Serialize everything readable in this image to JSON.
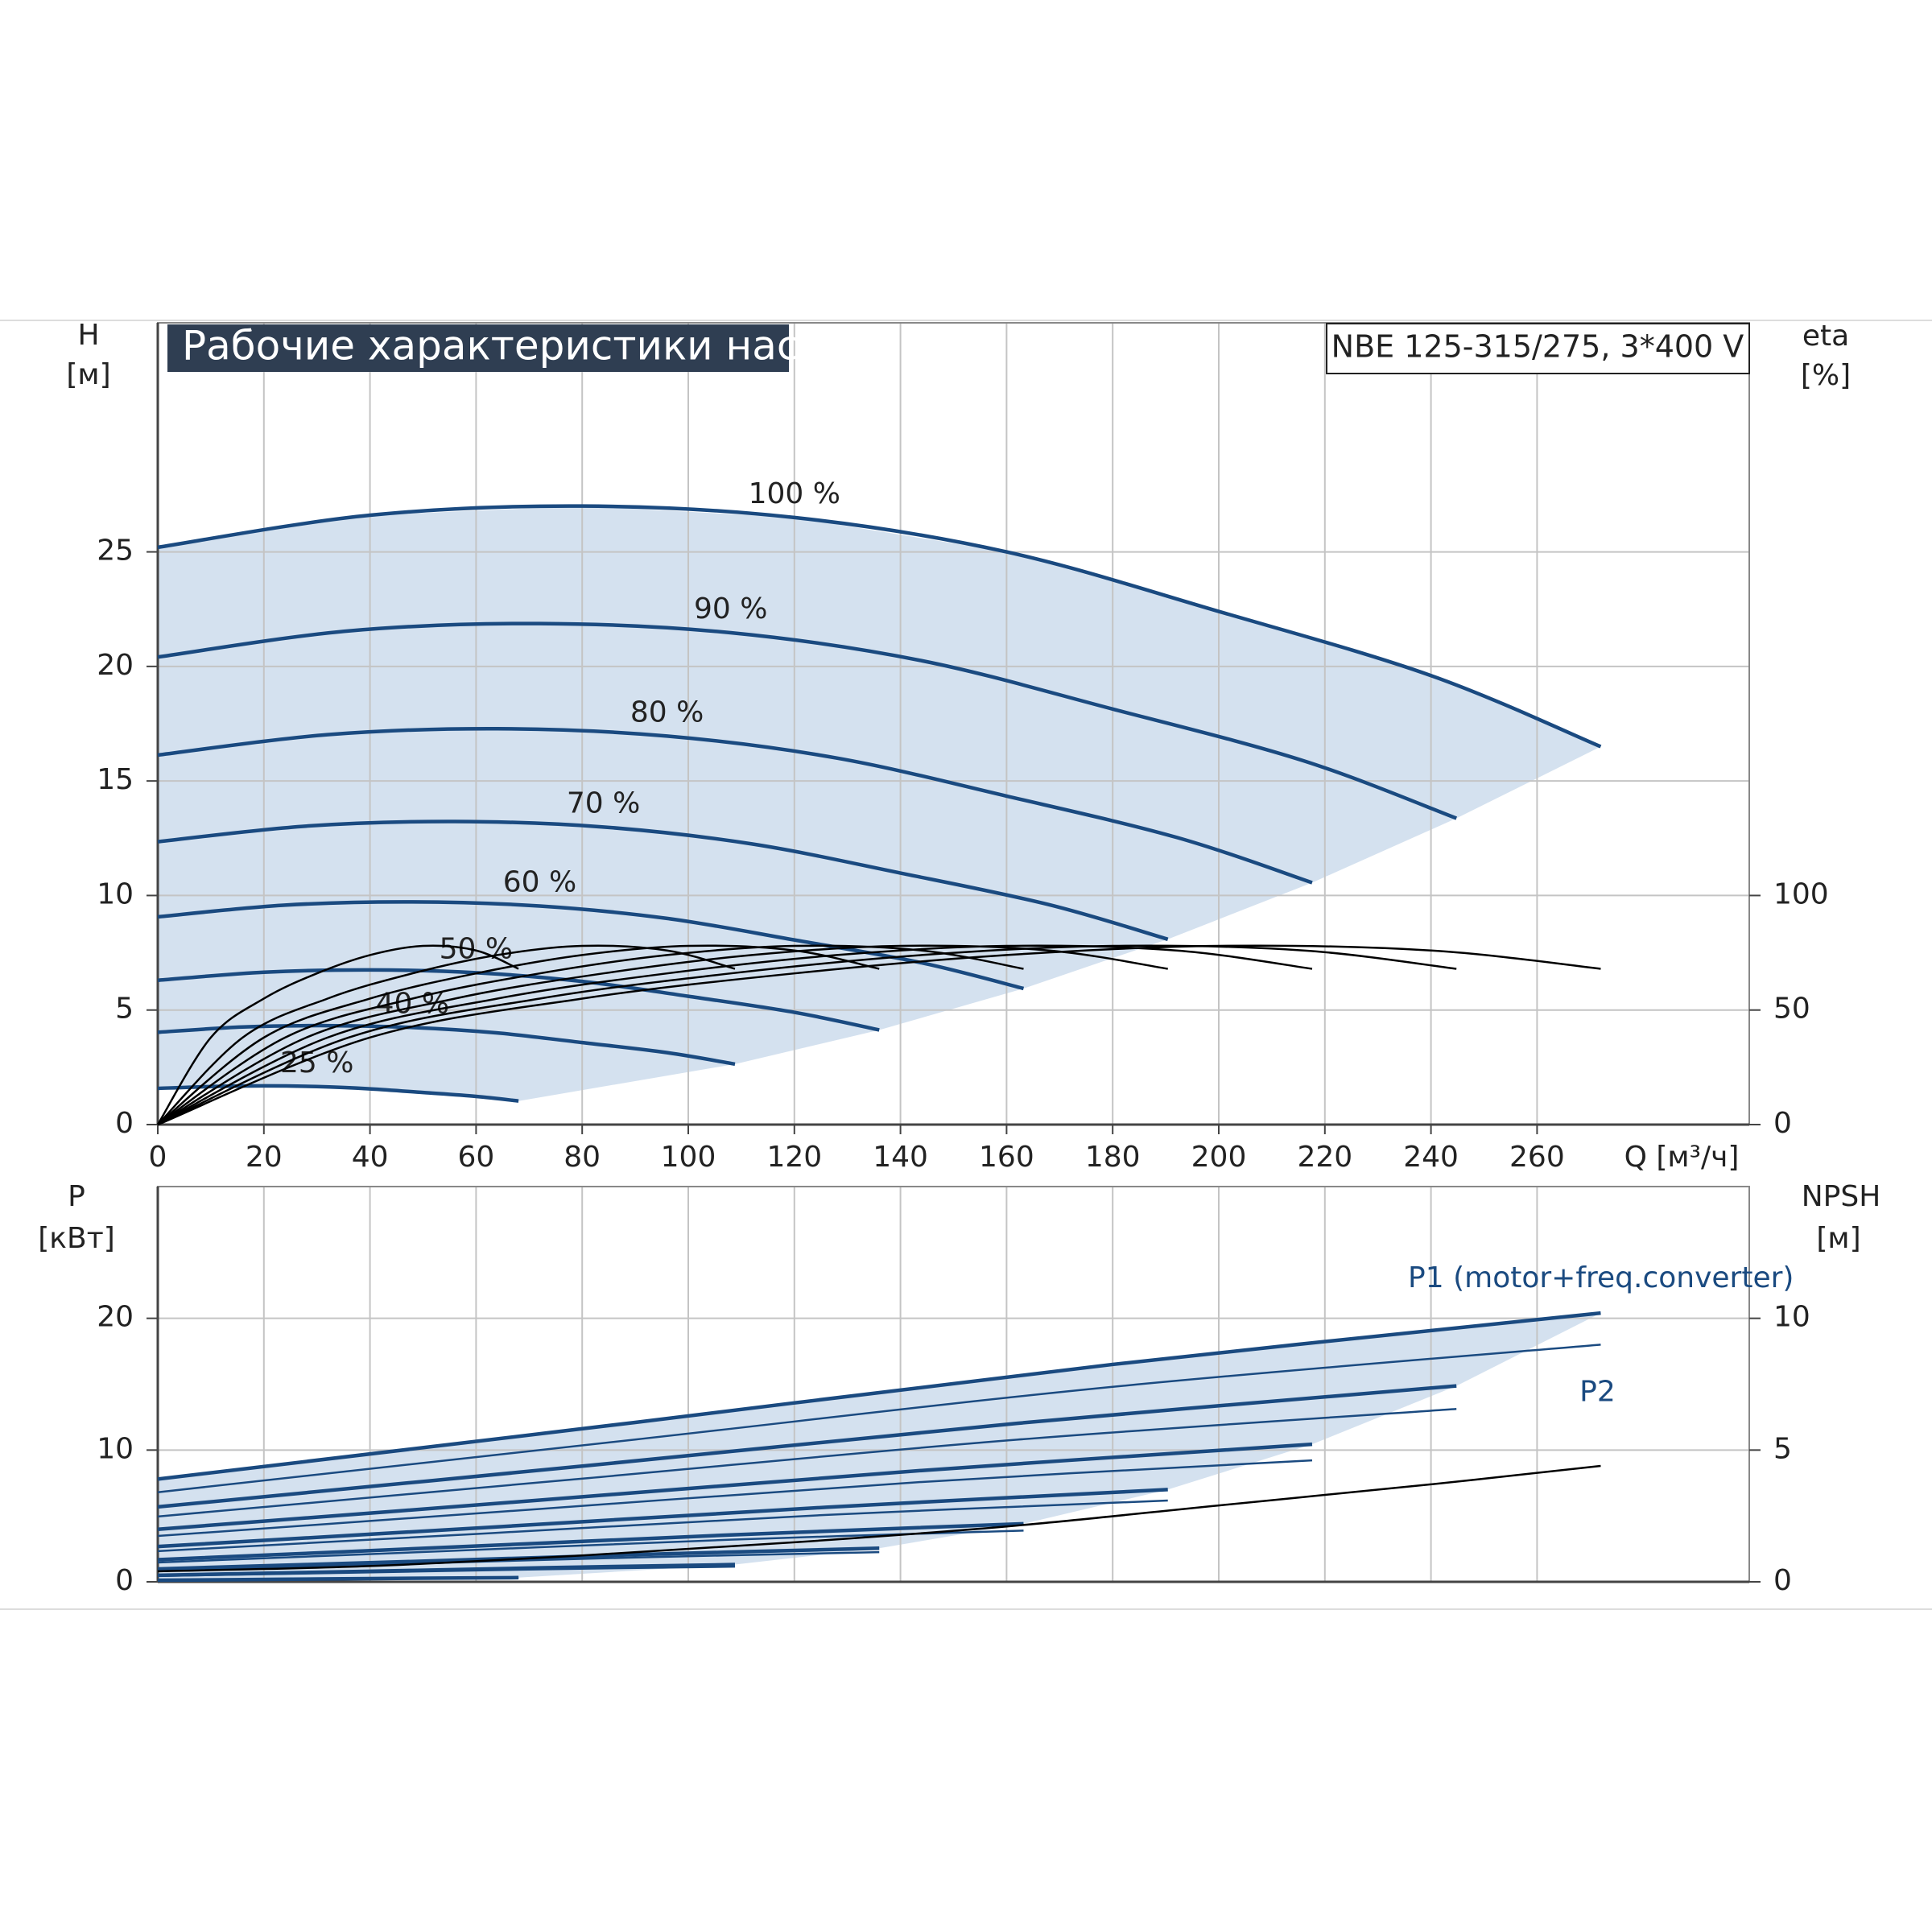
{
  "chart_data": [
    {
      "type": "line",
      "title": "Рабочие характеристики насоса",
      "annotation": "NBE 125-315/275, 3*400 V",
      "xlabel": "Q [м³/ч]",
      "ylabel": "H",
      "yunit": "[м]",
      "y2label": "eta",
      "y2unit": "[%]",
      "xlim": [
        0,
        300
      ],
      "xticks": [
        0,
        20,
        40,
        60,
        80,
        100,
        120,
        140,
        160,
        180,
        200,
        220,
        240,
        260
      ],
      "ylim": [
        0,
        35
      ],
      "yticks": [
        0,
        5,
        10,
        15,
        20,
        25
      ],
      "y2lim": [
        0,
        350
      ],
      "y2ticks": [
        0,
        50,
        100
      ],
      "grid": true,
      "fill": "#d4e1ef",
      "series": [
        {
          "name": "100 %",
          "color": "#1a4a80",
          "x": [
            0,
            40,
            80,
            120,
            160,
            200,
            240,
            272
          ],
          "values": [
            25.2,
            26.6,
            27.0,
            26.5,
            25.0,
            22.4,
            19.6,
            16.5
          ]
        },
        {
          "name": "90 %",
          "color": "#1a4a80",
          "x": [
            0,
            36,
            72,
            108,
            144,
            180,
            216,
            244.8
          ],
          "values": [
            20.41,
            21.55,
            21.87,
            21.47,
            20.25,
            18.14,
            15.88,
            13.37
          ]
        },
        {
          "name": "80 %",
          "color": "#1a4a80",
          "x": [
            0,
            32,
            64,
            96,
            128,
            160,
            192,
            217.6
          ],
          "values": [
            16.13,
            17.02,
            17.28,
            16.96,
            16.0,
            14.34,
            12.54,
            10.56
          ]
        },
        {
          "name": "70 %",
          "color": "#1a4a80",
          "x": [
            0,
            28,
            56,
            84,
            112,
            140,
            168,
            190.4
          ],
          "values": [
            12.35,
            13.03,
            13.23,
            12.99,
            12.25,
            10.98,
            9.6,
            8.09
          ]
        },
        {
          "name": "60 %",
          "color": "#1a4a80",
          "x": [
            0,
            24,
            48,
            72,
            96,
            120,
            144,
            163.2
          ],
          "values": [
            9.07,
            9.58,
            9.72,
            9.54,
            9.0,
            8.06,
            7.06,
            5.94
          ]
        },
        {
          "name": "50 %",
          "color": "#1a4a80",
          "x": [
            0,
            20,
            40,
            60,
            80,
            100,
            120,
            136
          ],
          "values": [
            6.3,
            6.65,
            6.75,
            6.63,
            6.25,
            5.6,
            4.9,
            4.13
          ]
        },
        {
          "name": "40 %",
          "color": "#1a4a80",
          "x": [
            0,
            16,
            32,
            48,
            64,
            80,
            96,
            108.8
          ],
          "values": [
            4.03,
            4.26,
            4.32,
            4.24,
            4.0,
            3.58,
            3.14,
            2.64
          ]
        },
        {
          "name": "25 %",
          "color": "#1a4a80",
          "x": [
            0,
            10,
            20,
            30,
            40,
            50,
            60,
            68
          ],
          "values": [
            1.58,
            1.66,
            1.69,
            1.66,
            1.56,
            1.4,
            1.23,
            1.03
          ]
        },
        {
          "color": "#000000",
          "axis": "y2",
          "x": [
            0,
            40,
            80,
            120,
            160,
            200,
            240,
            272
          ],
          "values": [
            0,
            38,
            55,
            66,
            74,
            78,
            76,
            68
          ]
        },
        {
          "color": "#000000",
          "axis": "y2",
          "x": [
            0,
            36,
            72,
            108,
            144,
            180,
            216,
            244.8
          ],
          "values": [
            0,
            38,
            55,
            66,
            74,
            78,
            76,
            68
          ]
        },
        {
          "color": "#000000",
          "axis": "y2",
          "x": [
            0,
            32,
            64,
            96,
            128,
            160,
            192,
            217.6
          ],
          "values": [
            0,
            38,
            55,
            66,
            74,
            78,
            76,
            68
          ]
        },
        {
          "color": "#000000",
          "axis": "y2",
          "x": [
            0,
            28,
            56,
            84,
            112,
            140,
            168,
            190.4
          ],
          "values": [
            0,
            38,
            55,
            66,
            74,
            78,
            76,
            68
          ]
        },
        {
          "color": "#000000",
          "axis": "y2",
          "x": [
            0,
            24,
            48,
            72,
            96,
            120,
            144,
            163.2
          ],
          "values": [
            0,
            38,
            55,
            66,
            74,
            78,
            76,
            68
          ]
        },
        {
          "color": "#000000",
          "axis": "y2",
          "x": [
            0,
            20,
            40,
            60,
            80,
            100,
            120,
            136
          ],
          "values": [
            0,
            38,
            55,
            66,
            74,
            78,
            76,
            68
          ]
        },
        {
          "color": "#000000",
          "axis": "y2",
          "x": [
            0,
            16,
            32,
            48,
            64,
            80,
            96,
            108.8
          ],
          "values": [
            0,
            38,
            55,
            66,
            74,
            78,
            76,
            68
          ]
        },
        {
          "color": "#000000",
          "axis": "y2",
          "x": [
            0,
            10,
            20,
            30,
            40,
            50,
            60,
            68
          ],
          "values": [
            0,
            38,
            55,
            66,
            74,
            78,
            76,
            68
          ]
        }
      ]
    },
    {
      "type": "line",
      "ylabel": "P",
      "yunit": "[кВт]",
      "y2label": "NPSH",
      "y2unit": "[м]",
      "xlim": [
        0,
        300
      ],
      "ylim": [
        0,
        30
      ],
      "yticks": [
        0,
        10,
        20
      ],
      "y2lim": [
        0,
        15
      ],
      "y2ticks": [
        0,
        5,
        10
      ],
      "grid": true,
      "fill": "#d4e1ef",
      "series": [
        {
          "name": "P1 (motor+freq.converter)",
          "color": "#1a4a80",
          "x": [
            0,
            90,
            180,
            272
          ],
          "values": [
            7.8,
            12.1,
            16.5,
            20.4
          ]
        },
        {
          "color": "#1a4a80",
          "x": [
            0,
            81,
            162,
            244.8
          ],
          "values": [
            5.69,
            8.82,
            12.03,
            14.87
          ]
        },
        {
          "color": "#1a4a80",
          "x": [
            0,
            72,
            144,
            217.6
          ],
          "values": [
            3.99,
            6.2,
            8.45,
            10.44
          ]
        },
        {
          "color": "#1a4a80",
          "x": [
            0,
            63,
            126,
            190.4
          ],
          "values": [
            2.68,
            4.15,
            5.66,
            7.0
          ]
        },
        {
          "color": "#1a4a80",
          "x": [
            0,
            54,
            108,
            163.2
          ],
          "values": [
            1.68,
            2.61,
            3.56,
            4.41
          ]
        },
        {
          "color": "#1a4a80",
          "x": [
            0,
            45,
            90,
            136
          ],
          "values": [
            0.98,
            1.51,
            2.06,
            2.55
          ]
        },
        {
          "color": "#1a4a80",
          "x": [
            0,
            36,
            72,
            108.8
          ],
          "values": [
            0.5,
            0.77,
            1.06,
            1.31
          ]
        },
        {
          "color": "#1a4a80",
          "x": [
            0,
            22.5,
            45,
            68
          ],
          "values": [
            0.12,
            0.19,
            0.26,
            0.32
          ]
        },
        {
          "name": "P2",
          "color": "#1a4a80",
          "x": [
            0,
            90,
            180,
            272
          ],
          "values": [
            6.8,
            10.8,
            14.8,
            18.0
          ]
        },
        {
          "color": "#1a4a80",
          "x": [
            0,
            81,
            162,
            244.8
          ],
          "values": [
            4.96,
            7.87,
            10.79,
            13.12
          ]
        },
        {
          "color": "#1a4a80",
          "x": [
            0,
            72,
            144,
            217.6
          ],
          "values": [
            3.48,
            5.53,
            7.58,
            9.22
          ]
        },
        {
          "color": "#1a4a80",
          "x": [
            0,
            63,
            126,
            190.4
          ],
          "values": [
            2.33,
            3.7,
            5.08,
            6.17
          ]
        },
        {
          "color": "#1a4a80",
          "x": [
            0,
            54,
            108,
            163.2
          ],
          "values": [
            1.47,
            2.33,
            3.2,
            3.89
          ]
        },
        {
          "color": "#1a4a80",
          "x": [
            0,
            45,
            90,
            136
          ],
          "values": [
            0.85,
            1.35,
            1.85,
            2.25
          ]
        },
        {
          "color": "#1a4a80",
          "x": [
            0,
            36,
            72,
            108.8
          ],
          "values": [
            0.44,
            0.69,
            0.95,
            1.15
          ]
        },
        {
          "color": "#1a4a80",
          "x": [
            0,
            22.5,
            45,
            68
          ],
          "values": [
            0.11,
            0.17,
            0.23,
            0.28
          ]
        },
        {
          "color": "#000000",
          "axis": "y2",
          "x": [
            0,
            40,
            80,
            120,
            160,
            200,
            240,
            272
          ],
          "values": [
            0.4,
            0.6,
            1.0,
            1.5,
            2.1,
            2.9,
            3.7,
            4.4
          ]
        }
      ]
    }
  ]
}
